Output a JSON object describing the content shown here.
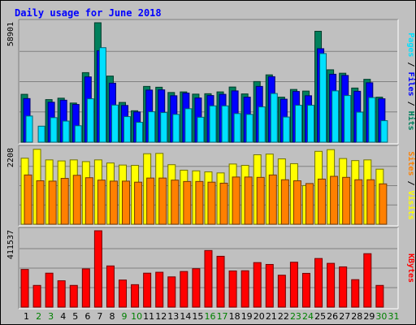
{
  "chart_data": {
    "type": "bar",
    "title": "Daily usage for June 2018",
    "categories": [
      "1",
      "2",
      "3",
      "4",
      "5",
      "6",
      "7",
      "8",
      "9",
      "10",
      "11",
      "12",
      "13",
      "14",
      "15",
      "16",
      "17",
      "18",
      "19",
      "20",
      "21",
      "22",
      "23",
      "24",
      "25",
      "26",
      "27",
      "28",
      "29",
      "30",
      "31"
    ],
    "weekend_days": [
      "2",
      "3",
      "9",
      "10",
      "16",
      "17",
      "23",
      "24",
      "30",
      "31"
    ],
    "panels": [
      {
        "id": "hits-files-pages",
        "max_label": "58901",
        "ylim": [
          0,
          58901
        ],
        "legend": [
          "Pages",
          "Files",
          "Hits"
        ],
        "series": [
          {
            "name": "Hits",
            "color": "#00805c",
            "values": [
              23600,
              0,
              21000,
              21700,
              19300,
              34300,
              58900,
              32600,
              19600,
              15500,
              27500,
              27100,
              24500,
              24800,
              23700,
              23900,
              24800,
              27200,
              23800,
              29900,
              33200,
              22200,
              26000,
              25200,
              54700,
              35700,
              34000,
              26700,
              31000,
              22200,
              0
            ]
          },
          {
            "name": "Files",
            "color": "#0000ff",
            "values": [
              21500,
              0,
              19700,
              20700,
              18600,
              32200,
              45100,
              29100,
              18100,
              14900,
              25700,
              25800,
              22900,
              24200,
              21800,
              23000,
              23600,
              25300,
              22200,
              27500,
              32300,
              21200,
              25000,
              22900,
              46100,
              33500,
              32900,
              25100,
              29300,
              21400,
              0
            ]
          },
          {
            "name": "Pages",
            "color": "#00e0ff",
            "values": [
              12900,
              7900,
              12100,
              10400,
              8100,
              21400,
              46600,
              18300,
              12600,
              9800,
              15000,
              14600,
              13700,
              16500,
              12300,
              17900,
              17900,
              14100,
              13700,
              17400,
              24000,
              12400,
              18200,
              18200,
              43700,
              25300,
              23000,
              14800,
              22000,
              10600,
              0
            ]
          }
        ]
      },
      {
        "id": "visits-sites",
        "max_label": "2208",
        "ylim": [
          0,
          2208
        ],
        "legend": [
          "Sites",
          "Visits"
        ],
        "series": [
          {
            "name": "Visits",
            "color": "#ffff00",
            "values": [
              1930,
              2190,
              1880,
              1850,
              1880,
              1830,
              1880,
              1790,
              1730,
              1720,
              2060,
              2070,
              1740,
              1580,
              1560,
              1530,
              1500,
              1760,
              1720,
              2030,
              2050,
              1910,
              1770,
              1130,
              2130,
              2180,
              1920,
              1860,
              1880,
              1610,
              0
            ]
          },
          {
            "name": "Sites",
            "color": "#ff8000",
            "values": [
              1440,
              1270,
              1260,
              1340,
              1430,
              1360,
              1290,
              1260,
              1260,
              1230,
              1350,
              1350,
              1290,
              1250,
              1250,
              1230,
              1200,
              1380,
              1380,
              1370,
              1440,
              1300,
              1270,
              1190,
              1320,
              1400,
              1370,
              1300,
              1300,
              1180,
              0
            ]
          }
        ]
      },
      {
        "id": "kbytes",
        "max_label": "411537",
        "ylim": [
          0,
          411537
        ],
        "legend": [
          "KBytes"
        ],
        "series": [
          {
            "name": "KBytes",
            "color": "#ff0000",
            "values": [
              203000,
              117000,
              183000,
              142000,
              117000,
              206000,
              411500,
              222000,
              146000,
              121000,
              183000,
              188000,
              163000,
              192000,
              207000,
              305000,
              274000,
              195000,
              196000,
              240000,
              230000,
              172000,
              242000,
              182000,
              262000,
              236000,
              217000,
              148000,
              288000,
              117000,
              0
            ]
          }
        ]
      }
    ]
  },
  "colors": {
    "frame_bg": "#c0c0c0",
    "plot_bg": "#c0c0c0",
    "title_color": "#0000ff",
    "weekday_label": "#000000",
    "weekend_label": "#008000",
    "grid": "#808080"
  }
}
